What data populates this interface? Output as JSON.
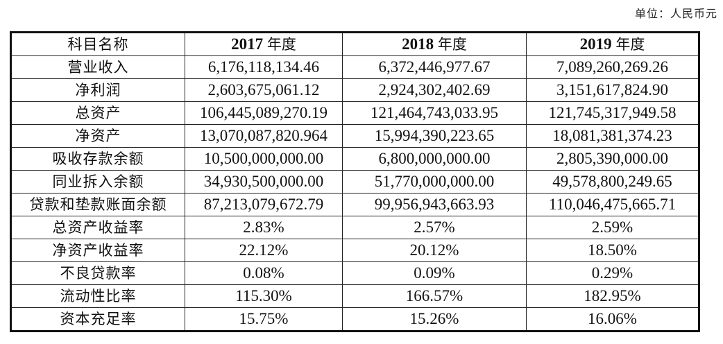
{
  "unit_label": "单位：人民币元",
  "table": {
    "header": {
      "label": "科目名称",
      "years": [
        {
          "year": "2017",
          "suffix": "年度"
        },
        {
          "year": "2018",
          "suffix": "年度"
        },
        {
          "year": "2019",
          "suffix": "年度"
        }
      ]
    },
    "rows": [
      {
        "label": "营业收入",
        "values": [
          "6,176,118,134.46",
          "6,372,446,977.67",
          "7,089,260,269.26"
        ]
      },
      {
        "label": "净利润",
        "values": [
          "2,603,675,061.12",
          "2,924,302,402.69",
          "3,151,617,824.90"
        ]
      },
      {
        "label": "总资产",
        "values": [
          "106,445,089,270.19",
          "121,464,743,033.95",
          "121,745,317,949.58"
        ]
      },
      {
        "label": "净资产",
        "values": [
          "13,070,087,820.964",
          "15,994,390,223.65",
          "18,081,381,374.23"
        ]
      },
      {
        "label": "吸收存款余额",
        "values": [
          "10,500,000,000.00",
          "6,800,000,000.00",
          "2,805,390,000.00"
        ]
      },
      {
        "label": "同业拆入余额",
        "values": [
          "34,930,500,000.00",
          "51,770,000,000.00",
          "49,578,800,249.65"
        ]
      },
      {
        "label": "贷款和垫款账面余额",
        "values": [
          "87,213,079,672.79",
          "99,956,943,663.93",
          "110,046,475,665.71"
        ]
      },
      {
        "label": "总资产收益率",
        "values": [
          "2.83%",
          "2.57%",
          "2.59%"
        ]
      },
      {
        "label": "净资产收益率",
        "values": [
          "22.12%",
          "20.12%",
          "18.50%"
        ]
      },
      {
        "label": "不良贷款率",
        "values": [
          "0.08%",
          "0.09%",
          "0.29%"
        ]
      },
      {
        "label": "流动性比率",
        "values": [
          "115.30%",
          "166.57%",
          "182.95%"
        ]
      },
      {
        "label": "资本充足率",
        "values": [
          "15.75%",
          "15.26%",
          "16.06%"
        ]
      }
    ]
  }
}
